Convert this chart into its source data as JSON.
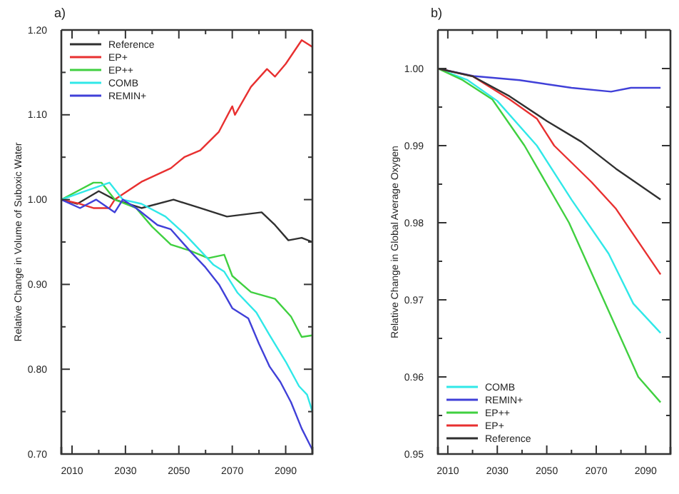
{
  "chart_data": [
    {
      "type": "line",
      "title": "a)",
      "ylabel": "Relative Change in Volume of Suboxic Water",
      "xlim": [
        2006,
        2100
      ],
      "ylim": [
        0.7,
        1.2
      ],
      "xticks": [
        2010,
        {
          "value": 2020,
          "label": null
        },
        2030,
        {
          "value": 2040,
          "label": null
        },
        2050,
        {
          "value": 2060,
          "label": null
        },
        2070,
        {
          "value": 2080,
          "label": null
        },
        2090,
        {
          "value": 2100,
          "label": null
        }
      ],
      "yticks": [
        {
          "value": 0.7,
          "label": "0.70"
        },
        {
          "value": 0.75,
          "label": null
        },
        {
          "value": 0.8,
          "label": "0.80"
        },
        {
          "value": 0.85,
          "label": null
        },
        {
          "value": 0.9,
          "label": "0.90"
        },
        {
          "value": 0.95,
          "label": null
        },
        {
          "value": 1.0,
          "label": "1.00"
        },
        {
          "value": 1.05,
          "label": null
        },
        {
          "value": 1.1,
          "label": "1.10"
        },
        {
          "value": 1.15,
          "label": null
        },
        {
          "value": 1.2,
          "label": "1.20"
        }
      ],
      "legend": "top left",
      "grid": false,
      "marker": "none",
      "line_style": "solid",
      "series": [
        {
          "name": "Reference",
          "color": "#303030",
          "x": [
            2006,
            2012,
            2020,
            2026,
            2036,
            2048,
            2058,
            2068,
            2081,
            2086,
            2091,
            2096,
            2100
          ],
          "values": [
            1.0,
            0.995,
            1.01,
            1.0,
            0.99,
            1.0,
            0.99,
            0.98,
            0.985,
            0.97,
            0.952,
            0.955,
            0.95
          ]
        },
        {
          "name": "EP+",
          "color": "#e83030",
          "x": [
            2006,
            2013,
            2018,
            2024,
            2026,
            2036,
            2047,
            2052,
            2058,
            2065,
            2070,
            2071,
            2077,
            2083,
            2086,
            2090,
            2096,
            2100
          ],
          "values": [
            1.0,
            0.995,
            0.99,
            0.99,
            1.0,
            1.021,
            1.037,
            1.05,
            1.058,
            1.08,
            1.11,
            1.1,
            1.133,
            1.154,
            1.145,
            1.16,
            1.188,
            1.18
          ]
        },
        {
          "name": "EP++",
          "color": "#40d040",
          "x": [
            2006,
            2012,
            2018,
            2021,
            2026,
            2034,
            2040,
            2047,
            2054,
            2061,
            2067,
            2070,
            2077,
            2086,
            2092,
            2096,
            2100
          ],
          "values": [
            1.0,
            1.01,
            1.02,
            1.02,
            1.0,
            0.99,
            0.968,
            0.947,
            0.94,
            0.931,
            0.935,
            0.91,
            0.891,
            0.883,
            0.862,
            0.838,
            0.84
          ]
        },
        {
          "name": "COMB",
          "color": "#30e8e8",
          "x": [
            2006,
            2015,
            2024,
            2029,
            2036,
            2045,
            2052,
            2058,
            2063,
            2067,
            2072,
            2079,
            2084,
            2090,
            2095,
            2098,
            2100
          ],
          "values": [
            1.0,
            1.01,
            1.02,
            1.0,
            0.995,
            0.98,
            0.96,
            0.94,
            0.923,
            0.915,
            0.89,
            0.867,
            0.84,
            0.809,
            0.78,
            0.77,
            0.75
          ]
        },
        {
          "name": "REMIN+",
          "color": "#4040d8",
          "x": [
            2006,
            2013,
            2019,
            2026,
            2029,
            2034,
            2042,
            2047,
            2054,
            2060,
            2065,
            2070,
            2076,
            2080,
            2084,
            2088,
            2092,
            2096,
            2100
          ],
          "values": [
            1.0,
            0.99,
            1.0,
            0.985,
            1.0,
            0.99,
            0.97,
            0.965,
            0.94,
            0.92,
            0.9,
            0.872,
            0.86,
            0.83,
            0.803,
            0.785,
            0.761,
            0.73,
            0.705
          ]
        }
      ]
    },
    {
      "type": "line",
      "title": "b)",
      "ylabel": "Relative Change in Global Average Oxygen",
      "xlim": [
        2006,
        2100
      ],
      "ylim": [
        0.95,
        1.005
      ],
      "xticks": [
        2010,
        {
          "value": 2020,
          "label": null
        },
        2030,
        {
          "value": 2040,
          "label": null
        },
        2050,
        {
          "value": 2060,
          "label": null
        },
        2070,
        {
          "value": 2080,
          "label": null
        },
        2090,
        {
          "value": 2100,
          "label": null
        }
      ],
      "yticks": [
        0.95,
        {
          "value": 0.955,
          "label": null
        },
        0.96,
        {
          "value": 0.965,
          "label": null
        },
        0.97,
        {
          "value": 0.975,
          "label": null
        },
        0.98,
        {
          "value": 0.985,
          "label": null
        },
        0.99,
        {
          "value": 0.995,
          "label": null
        },
        {
          "value": 1.0,
          "label": "1.00"
        }
      ],
      "legend": "bottom left",
      "grid": false,
      "marker": "none",
      "line_style": "solid",
      "series": [
        {
          "name": "COMB",
          "color": "#30e8e8",
          "x": [
            2006,
            2018,
            2030,
            2046,
            2060,
            2075,
            2085,
            2096
          ],
          "values": [
            1.0,
            0.9985,
            0.9958,
            0.99,
            0.983,
            0.976,
            0.9695,
            0.9657
          ]
        },
        {
          "name": "REMIN+",
          "color": "#4040d8",
          "x": [
            2006,
            2021,
            2039,
            2060,
            2076,
            2084,
            2096
          ],
          "values": [
            1.0,
            0.999,
            0.9985,
            0.9975,
            0.997,
            0.9975,
            0.9975
          ]
        },
        {
          "name": "EP++",
          "color": "#40d040",
          "x": [
            2006,
            2016,
            2028,
            2041,
            2059,
            2073,
            2087,
            2096
          ],
          "values": [
            1.0,
            0.9985,
            0.996,
            0.99,
            0.98,
            0.97,
            0.96,
            0.9567
          ]
        },
        {
          "name": "EP+",
          "color": "#e83030",
          "x": [
            2006,
            2020,
            2035,
            2046,
            2053,
            2068,
            2078,
            2096
          ],
          "values": [
            1.0,
            0.999,
            0.996,
            0.9935,
            0.99,
            0.9853,
            0.9818,
            0.9733
          ]
        },
        {
          "name": "Reference",
          "color": "#303030",
          "x": [
            2006,
            2020,
            2035,
            2050,
            2064,
            2078,
            2096
          ],
          "values": [
            1.0,
            0.999,
            0.9964,
            0.9932,
            0.9905,
            0.987,
            0.983
          ]
        }
      ]
    }
  ]
}
